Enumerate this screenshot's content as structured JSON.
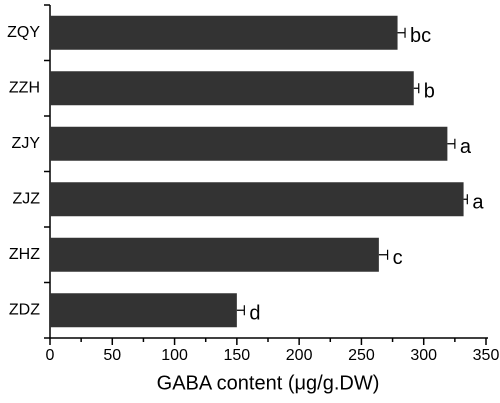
{
  "chart_data": {
    "type": "hbar",
    "categories": [
      "ZQY",
      "ZZH",
      "ZJY",
      "ZJZ",
      "ZHZ",
      "ZDZ"
    ],
    "values": [
      279,
      292,
      319,
      332,
      264,
      150
    ],
    "errors": [
      6,
      4,
      6,
      3,
      7,
      6
    ],
    "annotations": [
      "bc",
      "b",
      "a",
      "a",
      "c",
      "d"
    ],
    "color": "#333333",
    "xlabel": "GABA  content (μg/g.DW)",
    "xlim": [
      0,
      350
    ],
    "xticks": [
      0,
      50,
      100,
      150,
      200,
      250,
      300,
      350
    ],
    "xminorticks": [
      25,
      75,
      125,
      175,
      225,
      275,
      325
    ],
    "grid": false
  }
}
